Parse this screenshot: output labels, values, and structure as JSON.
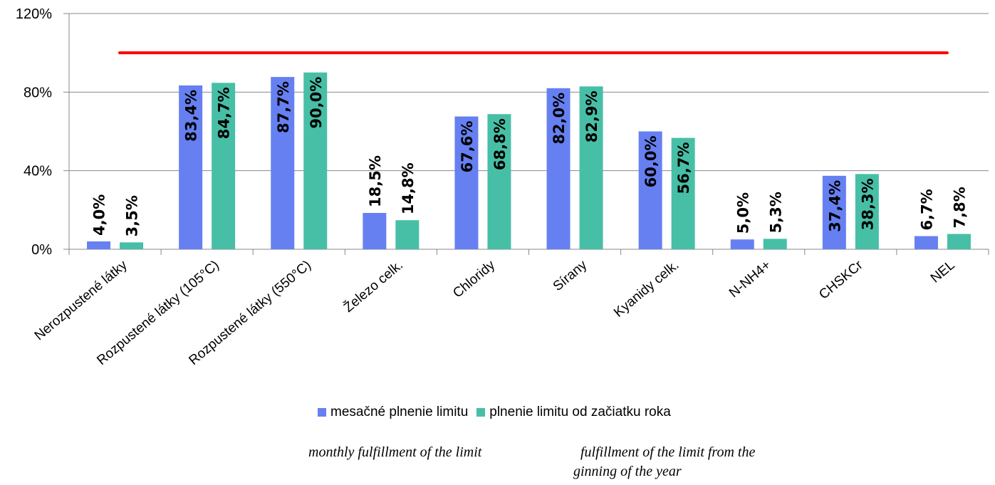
{
  "chart_data": {
    "type": "bar",
    "categories": [
      "Nerozpustené látky",
      "Rozpustené látky (105°C)",
      "Rozpustené látky (550°C)",
      "Železo celk.",
      "Chloridy",
      "Sírany",
      "Kyanidy celk.",
      "N-NH4+",
      "CHSKCr",
      "NEL"
    ],
    "series": [
      {
        "name": "mesačné plnenie limitu",
        "color": "#6680F2",
        "values": [
          4.0,
          83.4,
          87.7,
          18.5,
          67.6,
          82.0,
          60.0,
          5.0,
          37.4,
          6.7
        ],
        "labels": [
          "4,0%",
          "83,4%",
          "87,7%",
          "18,5%",
          "67,6%",
          "82,0%",
          "60,0%",
          "5,0%",
          "37,4%",
          "6,7%"
        ]
      },
      {
        "name": "plnenie limitu od začiatku roka",
        "color": "#47BFA6",
        "values": [
          3.5,
          84.7,
          90.0,
          14.8,
          68.8,
          82.9,
          56.7,
          5.3,
          38.3,
          7.8
        ],
        "labels": [
          "3,5%",
          "84,7%",
          "90,0%",
          "14,8%",
          "68,8%",
          "82,9%",
          "56,7%",
          "5,3%",
          "38,3%",
          "7,8%"
        ]
      }
    ],
    "limit_line": {
      "value": 100,
      "color": "#FF0000"
    },
    "ylim": [
      0,
      120
    ],
    "yticks": [
      0,
      40,
      80,
      120
    ],
    "ytick_labels": [
      "0%",
      "40%",
      "80%",
      "120%"
    ],
    "grid": true,
    "legend": "bottom-center"
  },
  "notes": {
    "monthly": "monthly fulfillment of the limit",
    "cumulative_line1": "fulfillment of the limit from the",
    "cumulative_line2": "ginning of the year"
  }
}
